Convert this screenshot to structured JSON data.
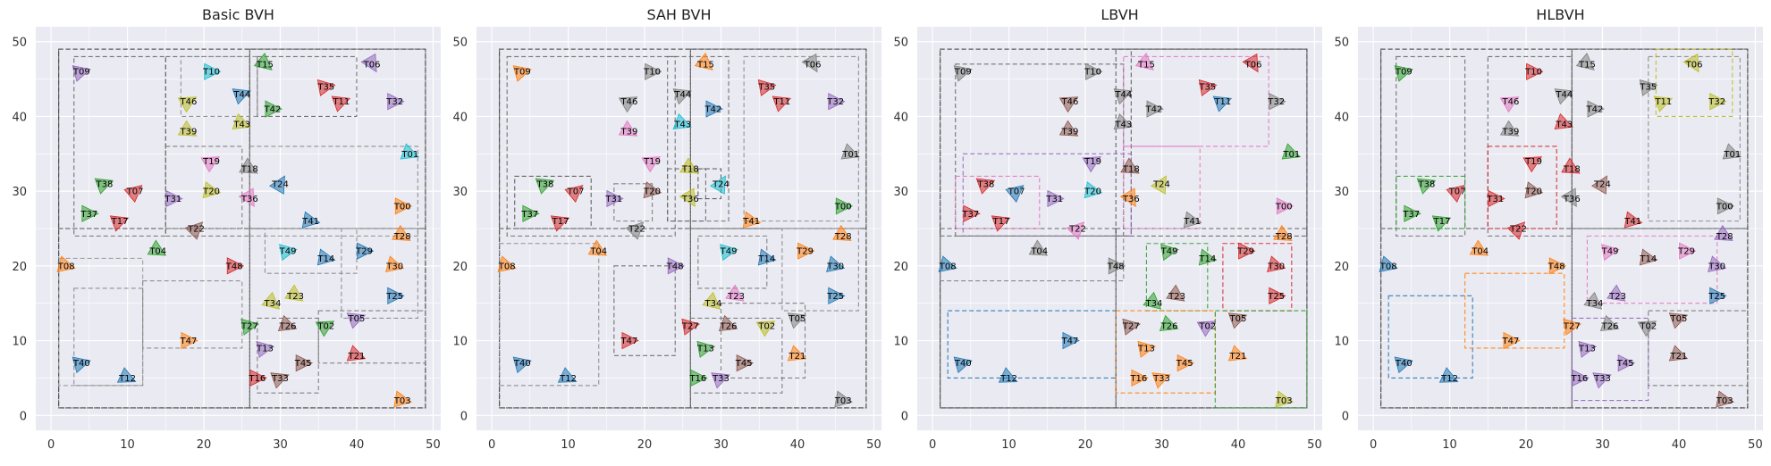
{
  "chart_data": {
    "type": "scatter",
    "xlim": [
      -2,
      51
    ],
    "ylim": [
      -2,
      52
    ],
    "xticks": [
      "0",
      "10",
      "20",
      "30",
      "40",
      "50"
    ],
    "yticks": [
      "0",
      "10",
      "20",
      "30",
      "40",
      "50"
    ],
    "grid": true,
    "palette": [
      "#1f77b4",
      "#ff7f0e",
      "#2ca02c",
      "#d62728",
      "#9467bd",
      "#8c564b",
      "#e377c2",
      "#7f7f7f",
      "#bcbd22",
      "#17becf"
    ],
    "triangles": [
      {
        "id": "T00",
        "x": 46,
        "y": 28,
        "a": 0
      },
      {
        "id": "T01",
        "x": 47,
        "y": 35,
        "a": 20
      },
      {
        "id": "T02",
        "x": 36,
        "y": 12,
        "a": -30
      },
      {
        "id": "T03",
        "x": 46,
        "y": 2,
        "a": 10
      },
      {
        "id": "T04",
        "x": 14,
        "y": 22,
        "a": 30
      },
      {
        "id": "T05",
        "x": 40,
        "y": 13,
        "a": -20
      },
      {
        "id": "T06",
        "x": 42,
        "y": 47,
        "a": 60
      },
      {
        "id": "T07",
        "x": 11,
        "y": 30,
        "a": -40
      },
      {
        "id": "T08",
        "x": 2,
        "y": 20,
        "a": 15
      },
      {
        "id": "T09",
        "x": 4,
        "y": 46,
        "a": -15
      },
      {
        "id": "T10",
        "x": 21,
        "y": 46,
        "a": 0
      },
      {
        "id": "T11",
        "x": 38,
        "y": 42,
        "a": -20
      },
      {
        "id": "T12",
        "x": 10,
        "y": 5,
        "a": 25
      },
      {
        "id": "T13",
        "x": 28,
        "y": 9,
        "a": -10
      },
      {
        "id": "T14",
        "x": 36,
        "y": 21,
        "a": 10
      },
      {
        "id": "T15",
        "x": 28,
        "y": 47,
        "a": 40
      },
      {
        "id": "T16",
        "x": 27,
        "y": 5,
        "a": 0
      },
      {
        "id": "T17",
        "x": 9,
        "y": 26,
        "a": -20
      },
      {
        "id": "T18",
        "x": 26,
        "y": 33,
        "a": 30
      },
      {
        "id": "T19",
        "x": 21,
        "y": 34,
        "a": -30
      },
      {
        "id": "T20",
        "x": 21,
        "y": 30,
        "a": 10
      },
      {
        "id": "T21",
        "x": 40,
        "y": 8,
        "a": 20
      },
      {
        "id": "T22",
        "x": 19,
        "y": 25,
        "a": -45
      },
      {
        "id": "T23",
        "x": 32,
        "y": 16,
        "a": 35
      },
      {
        "id": "T24",
        "x": 30,
        "y": 31,
        "a": -60
      },
      {
        "id": "T25",
        "x": 45,
        "y": 16,
        "a": 0
      },
      {
        "id": "T26",
        "x": 31,
        "y": 12,
        "a": 20
      },
      {
        "id": "T27",
        "x": 26,
        "y": 12,
        "a": -10
      },
      {
        "id": "T28",
        "x": 46,
        "y": 24,
        "a": 30
      },
      {
        "id": "T29",
        "x": 41,
        "y": 22,
        "a": 0
      },
      {
        "id": "T30",
        "x": 45,
        "y": 20,
        "a": 15
      },
      {
        "id": "T31",
        "x": 16,
        "y": 29,
        "a": 0
      },
      {
        "id": "T32",
        "x": 45,
        "y": 42,
        "a": 0
      },
      {
        "id": "T33",
        "x": 30,
        "y": 5,
        "a": -20
      },
      {
        "id": "T34",
        "x": 29,
        "y": 15,
        "a": 40
      },
      {
        "id": "T35",
        "x": 36,
        "y": 44,
        "a": -10
      },
      {
        "id": "T36",
        "x": 26,
        "y": 29,
        "a": 60
      },
      {
        "id": "T37",
        "x": 5,
        "y": 27,
        "a": 0
      },
      {
        "id": "T38",
        "x": 7,
        "y": 31,
        "a": -20
      },
      {
        "id": "T39",
        "x": 18,
        "y": 38,
        "a": 30
      },
      {
        "id": "T40",
        "x": 4,
        "y": 7,
        "a": -15
      },
      {
        "id": "T41",
        "x": 34,
        "y": 26,
        "a": 10
      },
      {
        "id": "T42",
        "x": 29,
        "y": 41,
        "a": 0
      },
      {
        "id": "T43",
        "x": 25,
        "y": 39,
        "a": 20
      },
      {
        "id": "T44",
        "x": 25,
        "y": 43,
        "a": -20
      },
      {
        "id": "T45",
        "x": 33,
        "y": 7,
        "a": 0
      },
      {
        "id": "T46",
        "x": 18,
        "y": 42,
        "a": -30
      },
      {
        "id": "T47",
        "x": 18,
        "y": 10,
        "a": 0
      },
      {
        "id": "T48",
        "x": 24,
        "y": 20,
        "a": 0
      },
      {
        "id": "T49",
        "x": 31,
        "y": 22,
        "a": -10
      }
    ],
    "subplots": [
      {
        "title": "Basic BVH",
        "colors": [
          1,
          9,
          2,
          1,
          2,
          4,
          4,
          3,
          1,
          4,
          9,
          3,
          0,
          4,
          0,
          2,
          3,
          3,
          7,
          6,
          8,
          3,
          5,
          8,
          0,
          0,
          5,
          2,
          1,
          0,
          1,
          4,
          4,
          5,
          8,
          3,
          6,
          2,
          2,
          8,
          0,
          0,
          2,
          8,
          0,
          5,
          8,
          1,
          3,
          9
        ],
        "boxes": [
          [
            1,
            1,
            49,
            49,
            "#333"
          ],
          [
            1,
            1,
            26,
            25,
            "#555"
          ],
          [
            26,
            1,
            49,
            25,
            "#555"
          ],
          [
            1,
            25,
            26,
            49,
            "#555"
          ],
          [
            26,
            25,
            49,
            49,
            "#555"
          ],
          [
            3,
            24,
            15,
            48,
            "#666"
          ],
          [
            15,
            24,
            26,
            48,
            "#666"
          ],
          [
            26,
            24,
            48,
            36,
            "#888"
          ],
          [
            27,
            40,
            40,
            48,
            "#666"
          ],
          [
            3,
            4,
            12,
            17,
            "#888"
          ],
          [
            1,
            4,
            12,
            21,
            "#999"
          ],
          [
            12,
            9,
            25,
            18,
            "#888"
          ],
          [
            27,
            3,
            35,
            13,
            "#777"
          ],
          [
            35,
            7,
            49,
            14,
            "#777"
          ],
          [
            28,
            19,
            40,
            25,
            "#888"
          ],
          [
            38,
            13,
            48,
            25,
            "#888"
          ],
          [
            17,
            40,
            27,
            48,
            "#888"
          ],
          [
            15,
            25,
            25,
            36,
            "#777"
          ]
        ]
      },
      {
        "title": "SAH BVH",
        "colors": [
          2,
          7,
          8,
          7,
          1,
          7,
          7,
          3,
          1,
          1,
          7,
          3,
          0,
          2,
          0,
          1,
          2,
          3,
          8,
          6,
          5,
          1,
          7,
          6,
          9,
          0,
          5,
          3,
          1,
          1,
          0,
          4,
          4,
          4,
          8,
          3,
          8,
          2,
          2,
          6,
          0,
          1,
          0,
          9,
          7,
          5,
          7,
          3,
          4,
          9
        ],
        "boxes": [
          [
            1,
            1,
            49,
            49,
            "#333"
          ],
          [
            1,
            1,
            26,
            25,
            "#555"
          ],
          [
            26,
            1,
            49,
            25,
            "#555"
          ],
          [
            1,
            25,
            26,
            49,
            "#555"
          ],
          [
            26,
            25,
            49,
            49,
            "#555"
          ],
          [
            2,
            24,
            24,
            48,
            "#666"
          ],
          [
            23,
            26,
            31,
            48,
            "#666"
          ],
          [
            33,
            26,
            48,
            48,
            "#888"
          ],
          [
            3,
            25,
            13,
            32,
            "#555"
          ],
          [
            16,
            26,
            21,
            31,
            "#777"
          ],
          [
            23,
            26,
            28,
            33,
            "#666"
          ],
          [
            27,
            29,
            30,
            33,
            "#555"
          ],
          [
            1,
            4,
            14,
            23,
            "#888"
          ],
          [
            16,
            8,
            24,
            20,
            "#666"
          ],
          [
            30,
            5,
            41,
            15,
            "#777"
          ],
          [
            27,
            17,
            36,
            24,
            "#777"
          ],
          [
            38,
            14,
            48,
            25,
            "#888"
          ],
          [
            26,
            3,
            38,
            13,
            "#777"
          ]
        ]
      },
      {
        "title": "LBVH",
        "colors": [
          6,
          2,
          4,
          8,
          7,
          5,
          3,
          0,
          0,
          7,
          7,
          0,
          0,
          1,
          2,
          6,
          1,
          3,
          5,
          4,
          9,
          1,
          6,
          5,
          8,
          3,
          2,
          5,
          1,
          3,
          3,
          4,
          7,
          1,
          2,
          3,
          1,
          3,
          3,
          5,
          0,
          7,
          7,
          7,
          7,
          1,
          5,
          0,
          7,
          2
        ],
        "boxes": [
          [
            1,
            1,
            49,
            49,
            "#333"
          ],
          [
            1,
            1,
            24,
            25,
            "#555"
          ],
          [
            24,
            1,
            49,
            25,
            "#555"
          ],
          [
            1,
            24,
            26,
            49,
            "#555"
          ],
          [
            24,
            24,
            49,
            49,
            "#555"
          ],
          [
            3,
            24,
            25,
            47,
            "#666"
          ],
          [
            25,
            36,
            44,
            48,
            "#e377c2"
          ],
          [
            25,
            25,
            35,
            36,
            "#e377c2"
          ],
          [
            4,
            24,
            26,
            35,
            "#9467bd"
          ],
          [
            2,
            5,
            24,
            14,
            "#1f77b4"
          ],
          [
            1,
            18,
            25,
            24,
            "#7f7f7f"
          ],
          [
            28,
            14,
            36,
            23,
            "#2ca02c"
          ],
          [
            38,
            14,
            47,
            23,
            "#d62728"
          ],
          [
            24,
            3,
            37,
            14,
            "#ff7f0e"
          ],
          [
            37,
            1,
            49,
            14,
            "#2ca02c"
          ],
          [
            3,
            25,
            14,
            32,
            "#e377c2"
          ]
        ]
      },
      {
        "title": "HLBVH",
        "colors": [
          7,
          7,
          7,
          5,
          1,
          5,
          8,
          3,
          0,
          2,
          3,
          8,
          0,
          4,
          5,
          7,
          4,
          2,
          3,
          3,
          5,
          5,
          3,
          4,
          5,
          0,
          7,
          1,
          4,
          6,
          4,
          3,
          8,
          4,
          7,
          7,
          7,
          2,
          2,
          7,
          0,
          3,
          7,
          3,
          7,
          4,
          6,
          1,
          1,
          6
        ],
        "boxes": [
          [
            1,
            1,
            49,
            49,
            "#333"
          ],
          [
            1,
            1,
            26,
            25,
            "#555"
          ],
          [
            26,
            1,
            49,
            25,
            "#555"
          ],
          [
            1,
            25,
            26,
            49,
            "#555"
          ],
          [
            26,
            25,
            49,
            49,
            "#555"
          ],
          [
            3,
            24,
            12,
            48,
            "#666"
          ],
          [
            15,
            24,
            26,
            48,
            "#666"
          ],
          [
            36,
            26,
            48,
            48,
            "#888"
          ],
          [
            3,
            25,
            12,
            32,
            "#2ca02c"
          ],
          [
            15,
            25,
            24,
            36,
            "#d62728"
          ],
          [
            37,
            40,
            47,
            49,
            "#bcbd22"
          ],
          [
            2,
            5,
            13,
            16,
            "#1f77b4"
          ],
          [
            12,
            9,
            25,
            19,
            "#ff7f0e"
          ],
          [
            28,
            15,
            45,
            24,
            "#e377c2"
          ],
          [
            26,
            2,
            36,
            13,
            "#9467bd"
          ],
          [
            36,
            4,
            49,
            14,
            "#777"
          ]
        ]
      }
    ]
  }
}
